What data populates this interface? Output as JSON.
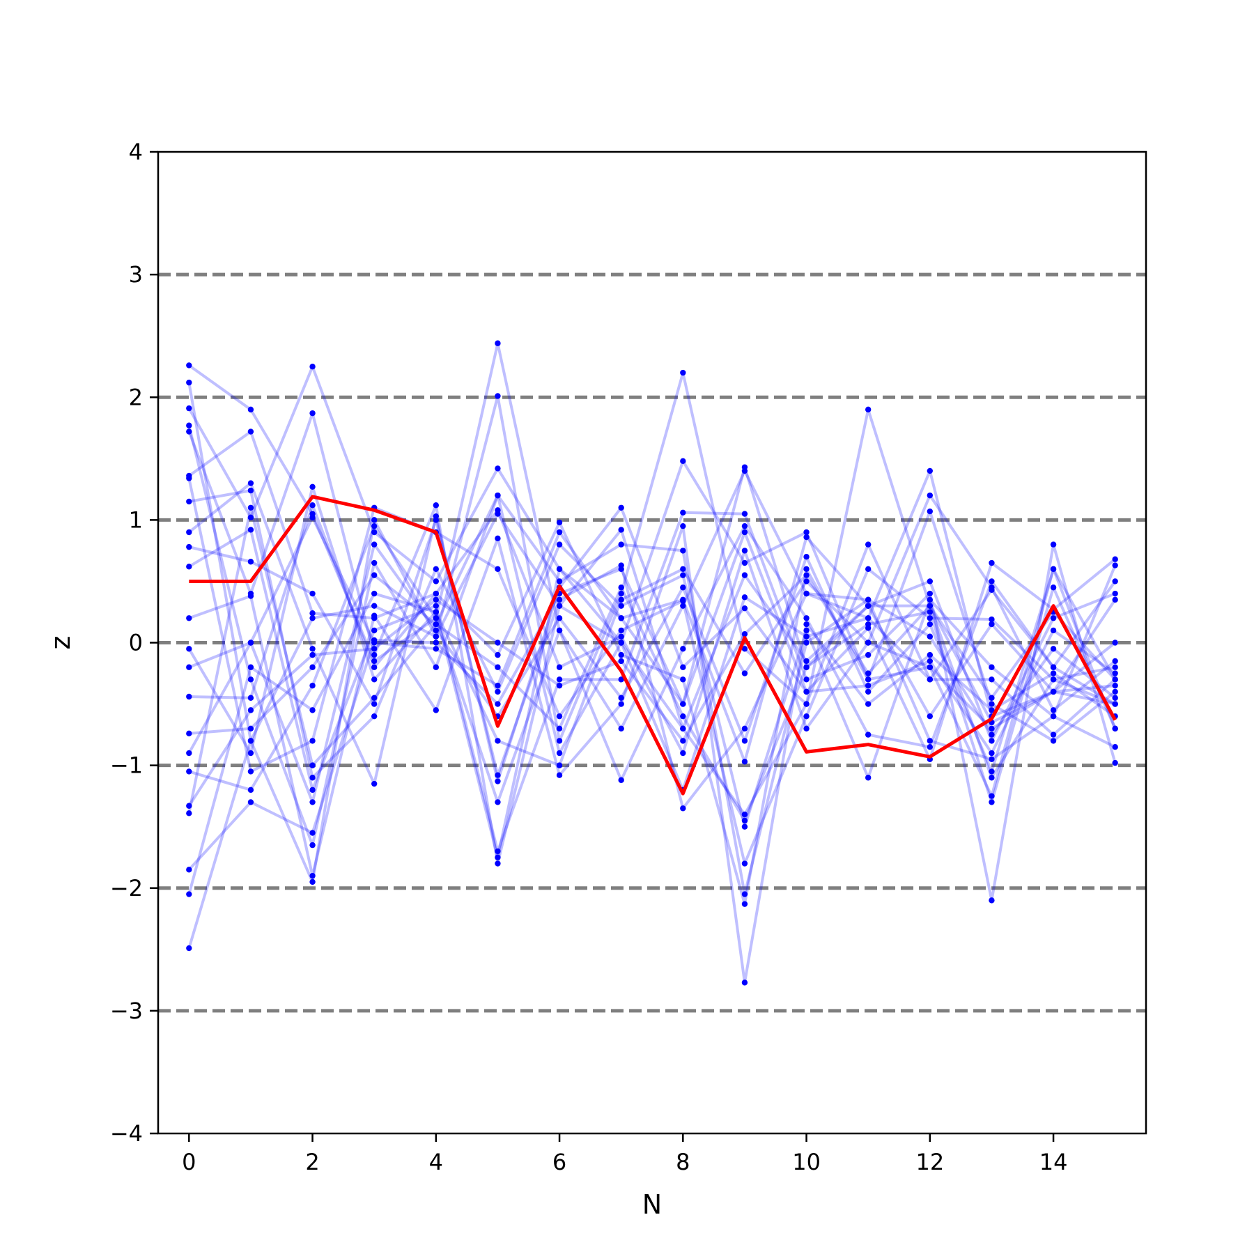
{
  "chart_data": {
    "type": "line",
    "title": "",
    "xlabel": "N",
    "ylabel": "z",
    "xlim": [
      -0.5,
      15.5
    ],
    "ylim": [
      -4,
      4
    ],
    "xticks": [
      0,
      2,
      4,
      6,
      8,
      10,
      12,
      14
    ],
    "xtick_labels": [
      "0",
      "2",
      "4",
      "6",
      "8",
      "10",
      "12",
      "14"
    ],
    "yticks": [
      -4,
      -3,
      -2,
      -1,
      0,
      1,
      2,
      3,
      4
    ],
    "ytick_labels": [
      "−4",
      "−3",
      "−2",
      "−1",
      "0",
      "1",
      "2",
      "3",
      "4"
    ],
    "reference_lines": {
      "y": [
        -3,
        -2,
        -1,
        0,
        1,
        2,
        3
      ],
      "style": "dashed",
      "color": "#7f7f7f"
    },
    "grid": false,
    "legend": "none",
    "colors": {
      "trials": "#0000ff",
      "highlight": "#ff0000",
      "reference": "#7f7f7f"
    },
    "x": [
      0,
      1,
      2,
      3,
      4,
      5,
      6,
      7,
      8,
      9,
      10,
      11,
      12,
      13,
      14,
      15
    ],
    "background_series": [
      {
        "values": [
          2.26,
          1.9,
          1.05,
          -0.15,
          0.2,
          2.44,
          0.1,
          -0.7,
          0.3,
          1.4,
          0.4,
          0.2,
          1.4,
          -0.6,
          -0.4,
          -0.5
        ]
      },
      {
        "values": [
          2.12,
          -0.8,
          -1.95,
          1.0,
          0.05,
          2.01,
          -0.8,
          0.4,
          2.2,
          -0.05,
          -0.5,
          1.9,
          0.3,
          -1.1,
          -0.3,
          -0.2
        ]
      },
      {
        "values": [
          1.91,
          1.02,
          2.25,
          0.9,
          0.5,
          1.42,
          0.6,
          0.2,
          -0.5,
          1.43,
          -0.2,
          0.3,
          0.5,
          -0.8,
          0.2,
          0.4
        ]
      },
      {
        "values": [
          1.77,
          -0.3,
          -1.65,
          0.65,
          -0.2,
          1.2,
          -0.9,
          0.0,
          1.48,
          0.65,
          0.9,
          -0.3,
          -0.2,
          -1.25,
          0.6,
          -0.7
        ]
      },
      {
        "values": [
          1.72,
          0.4,
          1.87,
          -0.1,
          1.12,
          -1.8,
          0.3,
          0.92,
          -0.7,
          -1.4,
          -0.5,
          0.8,
          -0.3,
          0.43,
          -0.2,
          0.5
        ]
      },
      {
        "values": [
          1.36,
          1.72,
          0.24,
          0.2,
          0.4,
          -0.1,
          0.98,
          -0.1,
          -0.3,
          -2.13,
          0.6,
          -0.3,
          1.07,
          -0.5,
          -0.8,
          -0.4
        ]
      },
      {
        "values": [
          1.34,
          -1.05,
          -0.8,
          1.1,
          0.9,
          0.6,
          -0.6,
          0.1,
          0.34,
          -1.8,
          -0.6,
          0.6,
          0.2,
          0.19,
          -0.3,
          -0.5
        ]
      },
      {
        "values": [
          1.15,
          1.24,
          -1.1,
          -0.6,
          0.6,
          -0.4,
          0.8,
          0.3,
          0.55,
          -1.5,
          0.1,
          -1.1,
          0.35,
          -0.2,
          -0.6,
          0.63
        ]
      },
      {
        "values": [
          0.9,
          1.3,
          -0.05,
          -1.15,
          1.03,
          -1.13,
          0.45,
          1.1,
          -0.2,
          0.28,
          -0.4,
          0.12,
          -0.95,
          0.65,
          0.27,
          0.68
        ]
      },
      {
        "values": [
          0.78,
          0.66,
          0.4,
          -0.5,
          1.0,
          -1.08,
          0.35,
          0.63,
          -1.35,
          -0.7,
          0.4,
          0.35,
          -0.8,
          -0.95,
          -0.6,
          -0.85
        ]
      },
      {
        "values": [
          0.62,
          0.92,
          -1.2,
          0.1,
          0.3,
          -1.7,
          -0.3,
          -0.3,
          1.06,
          1.05,
          -0.3,
          -0.1,
          0.4,
          -2.1,
          0.8,
          -0.98
        ]
      },
      {
        "values": [
          0.2,
          0.38,
          -1.9,
          0.22,
          -0.55,
          0.85,
          -1.08,
          -0.5,
          0.95,
          -2.77,
          0.15,
          -0.5,
          -0.1,
          -0.55,
          -0.25,
          -0.6
        ]
      },
      {
        "values": [
          -0.05,
          -0.9,
          1.27,
          -0.3,
          0.25,
          -1.75,
          0.6,
          0.0,
          -1.2,
          0.37,
          0.05,
          0.2,
          -0.3,
          -0.3,
          -0.75,
          -0.3
        ]
      },
      {
        "values": [
          -0.2,
          0.0,
          -1.3,
          0.8,
          0.1,
          -0.6,
          0.2,
          -0.45,
          0.45,
          -0.8,
          0.7,
          -0.4,
          0.15,
          -1.05,
          0.6,
          -0.3
        ]
      },
      {
        "values": [
          -0.44,
          -0.45,
          1.12,
          -0.2,
          0.4,
          1.08,
          -0.2,
          0.05,
          -0.9,
          0.75,
          -0.7,
          0.0,
          -0.2,
          -0.7,
          -0.4,
          0.0
        ]
      },
      {
        "values": [
          -0.74,
          -0.7,
          -0.2,
          0.55,
          0.15,
          -0.2,
          -0.7,
          0.45,
          -0.6,
          -1.45,
          -0.2,
          0.15,
          0.25,
          -1.3,
          0.45,
          -0.7
        ]
      },
      {
        "values": [
          -0.9,
          0.0,
          1.02,
          0.0,
          -0.05,
          -0.35,
          0.9,
          0.2,
          0.35,
          -0.97,
          0.86,
          0.3,
          -0.6,
          0.15,
          -0.4,
          0.35
        ]
      },
      {
        "values": [
          -1.05,
          -1.2,
          -0.35,
          0.95,
          0.2,
          -1.3,
          0.1,
          -1.12,
          -0.05,
          0.95,
          0.2,
          -0.75,
          -0.85,
          0.5,
          -0.2,
          -0.5
        ]
      },
      {
        "values": [
          -1.33,
          -0.55,
          -0.1,
          -0.05,
          0.35,
          0.0,
          -0.35,
          -0.15,
          -0.8,
          0.07,
          0.55,
          -0.25,
          0.3,
          -0.45,
          0.25,
          -0.3
        ]
      },
      {
        "values": [
          -1.39,
          1.1,
          -1.0,
          -0.45,
          0.15,
          1.2,
          0.5,
          0.8,
          0.75,
          -2.05,
          0.0,
          0.35,
          0.05,
          -0.75,
          -0.05,
          -0.45
        ]
      },
      {
        "values": [
          -1.85,
          -1.3,
          -1.55,
          0.02,
          0.0,
          -0.5,
          0.4,
          0.6,
          -0.5,
          0.9,
          -0.4,
          -0.35,
          -0.15,
          -0.9,
          0.1,
          -0.25
        ]
      },
      {
        "values": [
          -2.05,
          -0.2,
          -0.55,
          0.4,
          0.25,
          -0.8,
          -1.0,
          0.35,
          0.6,
          -0.25,
          0.5,
          0.0,
          1.2,
          0.45,
          -0.55,
          -0.15
        ]
      },
      {
        "values": [
          -2.49,
          -0.8,
          0.2,
          0.3,
          0.05,
          1.05,
          0.3,
          0.0,
          -0.7,
          0.55,
          -0.15,
          0.3,
          0.3,
          -0.65,
          -0.4,
          -0.35
        ]
      }
    ],
    "highlight_series": {
      "values": [
        0.5,
        0.5,
        1.19,
        1.08,
        0.9,
        -0.68,
        0.46,
        -0.23,
        -1.23,
        0.04,
        -0.89,
        -0.83,
        -0.93,
        -0.62,
        0.3,
        -0.63
      ]
    }
  }
}
